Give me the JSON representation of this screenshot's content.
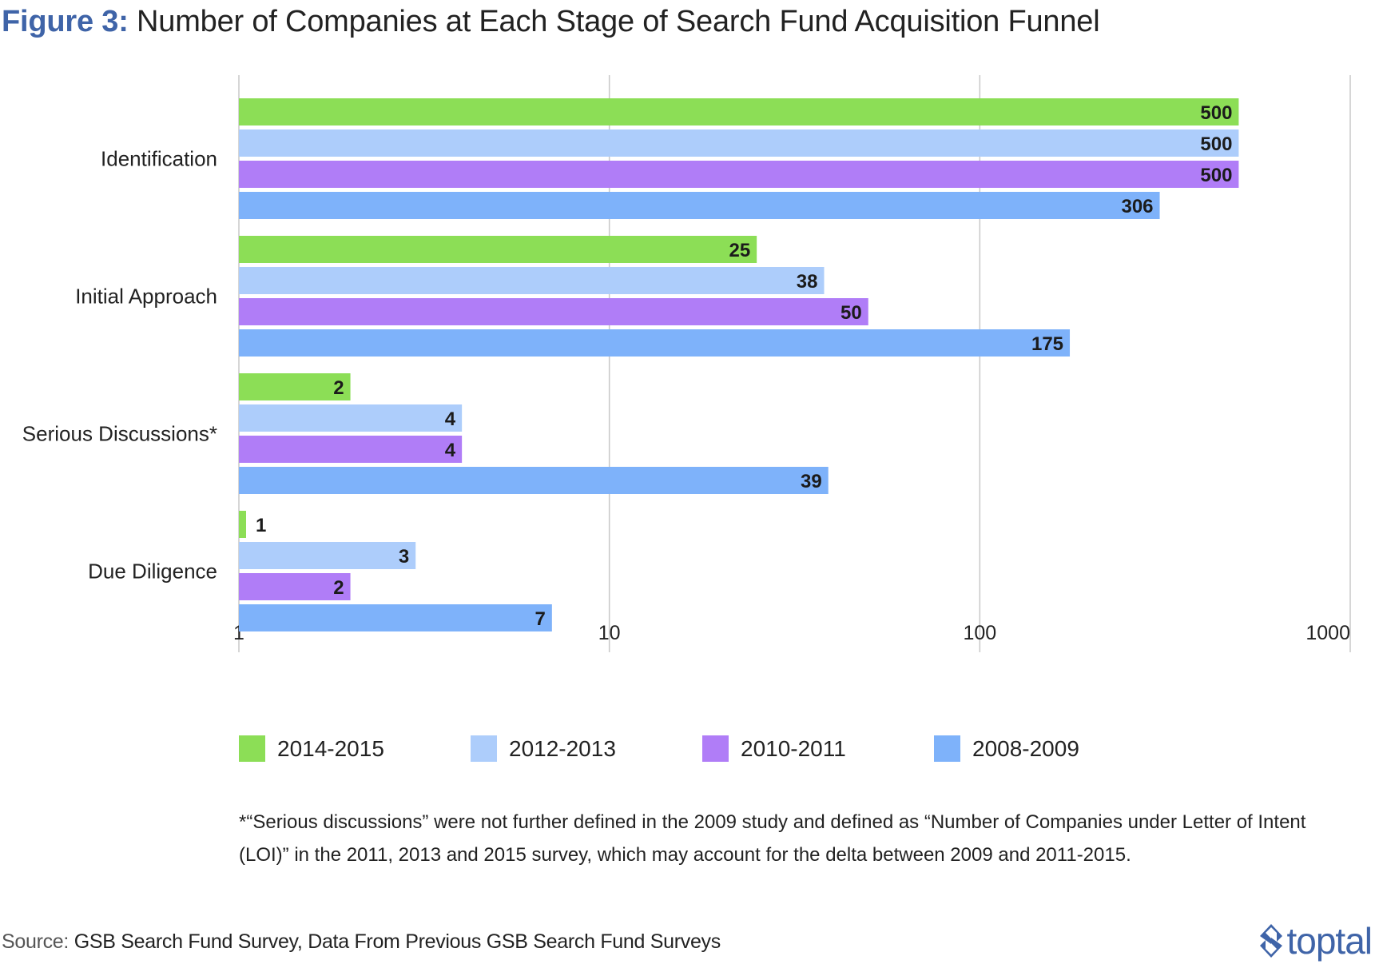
{
  "title": {
    "prefix": "Figure 3:",
    "text": "Number of Companies at Each Stage of Search Fund Acquisition Funnel"
  },
  "chart_data": {
    "type": "bar",
    "orientation": "horizontal",
    "x_scale": "log",
    "xlim": [
      1,
      1000
    ],
    "x_ticks": [
      "1",
      "10",
      "100",
      "1000"
    ],
    "grid": "vertical",
    "legend_placement": "bottom",
    "categories": [
      "Identification",
      "Initial Approach",
      "Serious Discussions*",
      "Due Diligence"
    ],
    "series": [
      {
        "name": "2014-2015",
        "color": "#8cde56",
        "values": [
          500,
          25,
          2,
          1
        ]
      },
      {
        "name": "2012-2013",
        "color": "#adcdfb",
        "values": [
          500,
          38,
          4,
          3
        ]
      },
      {
        "name": "2010-2011",
        "color": "#b07df7",
        "values": [
          500,
          50,
          4,
          2
        ]
      },
      {
        "name": "2008-2009",
        "color": "#7eb2fa",
        "values": [
          306,
          175,
          39,
          7
        ]
      }
    ]
  },
  "footnote": "*“Serious discussions” were not further defined in the 2009 study and defined as “Number of Companies under Letter of Intent (LOI)” in the 2011, 2013 and 2015 survey, which may account for the delta between 2009 and 2011-2015.",
  "source": {
    "prefix": "Source:",
    "text": "GSB Search Fund Survey, Data From Previous GSB Search Fund Surveys"
  },
  "brand": {
    "name": "toptal",
    "icon": "toptal-diamond-icon",
    "color": "#3f64a8"
  }
}
